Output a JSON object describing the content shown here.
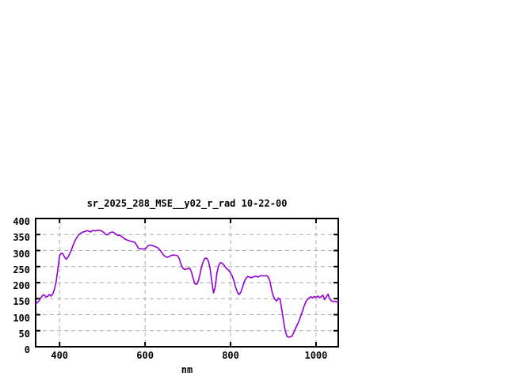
{
  "window": {
    "background": "#ffffff"
  },
  "chart_data": {
    "type": "line",
    "title": "sr_2025_288_MSE__y02_r_rad 10-22-00",
    "xlabel": "nm",
    "ylabel": "",
    "xlim": [
      344,
      1052
    ],
    "ylim": [
      0,
      400
    ],
    "x_ticks": [
      400,
      600,
      800,
      1000
    ],
    "y_ticks": [
      0,
      50,
      100,
      150,
      200,
      250,
      300,
      350,
      400
    ],
    "grid": true,
    "legend_position": "none",
    "colors": {
      "line": "#9400d3",
      "grid": "#ababab",
      "axis": "#000000",
      "text": "#000000",
      "background": "#ffffff"
    },
    "points": [
      [
        344,
        133
      ],
      [
        348,
        138
      ],
      [
        352,
        143
      ],
      [
        356,
        152
      ],
      [
        360,
        160
      ],
      [
        364,
        162
      ],
      [
        368,
        155
      ],
      [
        372,
        157
      ],
      [
        376,
        163
      ],
      [
        380,
        158
      ],
      [
        384,
        164
      ],
      [
        388,
        180
      ],
      [
        392,
        203
      ],
      [
        396,
        243
      ],
      [
        400,
        284
      ],
      [
        404,
        292
      ],
      [
        408,
        290
      ],
      [
        412,
        278
      ],
      [
        416,
        273
      ],
      [
        420,
        280
      ],
      [
        424,
        291
      ],
      [
        428,
        303
      ],
      [
        432,
        318
      ],
      [
        436,
        330
      ],
      [
        440,
        340
      ],
      [
        444,
        348
      ],
      [
        448,
        353
      ],
      [
        452,
        356
      ],
      [
        456,
        358
      ],
      [
        460,
        360
      ],
      [
        464,
        362
      ],
      [
        468,
        361
      ],
      [
        472,
        358
      ],
      [
        476,
        361
      ],
      [
        480,
        363
      ],
      [
        484,
        361
      ],
      [
        488,
        363
      ],
      [
        492,
        364
      ],
      [
        496,
        362
      ],
      [
        500,
        360
      ],
      [
        504,
        356
      ],
      [
        508,
        350
      ],
      [
        512,
        349
      ],
      [
        516,
        354
      ],
      [
        520,
        357
      ],
      [
        524,
        358
      ],
      [
        528,
        355
      ],
      [
        532,
        351
      ],
      [
        536,
        347
      ],
      [
        540,
        349
      ],
      [
        544,
        345
      ],
      [
        548,
        341
      ],
      [
        552,
        337
      ],
      [
        556,
        334
      ],
      [
        560,
        332
      ],
      [
        564,
        330
      ],
      [
        568,
        329
      ],
      [
        572,
        327
      ],
      [
        576,
        326
      ],
      [
        580,
        318
      ],
      [
        584,
        308
      ],
      [
        588,
        305
      ],
      [
        592,
        306
      ],
      [
        596,
        305
      ],
      [
        600,
        305
      ],
      [
        604,
        310
      ],
      [
        608,
        316
      ],
      [
        612,
        317
      ],
      [
        616,
        316
      ],
      [
        620,
        314
      ],
      [
        624,
        312
      ],
      [
        628,
        310
      ],
      [
        632,
        306
      ],
      [
        636,
        300
      ],
      [
        640,
        292
      ],
      [
        644,
        285
      ],
      [
        648,
        281
      ],
      [
        652,
        279
      ],
      [
        656,
        281
      ],
      [
        660,
        284
      ],
      [
        664,
        286
      ],
      [
        668,
        286
      ],
      [
        672,
        285
      ],
      [
        676,
        284
      ],
      [
        680,
        275
      ],
      [
        684,
        258
      ],
      [
        688,
        246
      ],
      [
        692,
        241
      ],
      [
        696,
        242
      ],
      [
        700,
        243
      ],
      [
        704,
        246
      ],
      [
        708,
        235
      ],
      [
        712,
        215
      ],
      [
        716,
        198
      ],
      [
        720,
        194
      ],
      [
        724,
        202
      ],
      [
        728,
        223
      ],
      [
        732,
        248
      ],
      [
        736,
        266
      ],
      [
        740,
        276
      ],
      [
        744,
        276
      ],
      [
        748,
        268
      ],
      [
        752,
        246
      ],
      [
        756,
        205
      ],
      [
        760,
        168
      ],
      [
        764,
        185
      ],
      [
        768,
        230
      ],
      [
        772,
        252
      ],
      [
        776,
        262
      ],
      [
        780,
        261
      ],
      [
        784,
        256
      ],
      [
        788,
        248
      ],
      [
        792,
        243
      ],
      [
        796,
        238
      ],
      [
        800,
        230
      ],
      [
        804,
        220
      ],
      [
        808,
        205
      ],
      [
        812,
        185
      ],
      [
        816,
        170
      ],
      [
        820,
        163
      ],
      [
        824,
        170
      ],
      [
        828,
        185
      ],
      [
        832,
        203
      ],
      [
        836,
        213
      ],
      [
        840,
        219
      ],
      [
        844,
        218
      ],
      [
        848,
        215
      ],
      [
        852,
        217
      ],
      [
        856,
        219
      ],
      [
        860,
        220
      ],
      [
        864,
        217
      ],
      [
        868,
        220
      ],
      [
        872,
        222
      ],
      [
        876,
        221
      ],
      [
        880,
        221
      ],
      [
        884,
        222
      ],
      [
        888,
        218
      ],
      [
        892,
        205
      ],
      [
        896,
        178
      ],
      [
        900,
        158
      ],
      [
        904,
        148
      ],
      [
        908,
        143
      ],
      [
        912,
        152
      ],
      [
        916,
        147
      ],
      [
        920,
        115
      ],
      [
        924,
        80
      ],
      [
        928,
        50
      ],
      [
        932,
        32
      ],
      [
        936,
        30
      ],
      [
        940,
        31
      ],
      [
        944,
        33
      ],
      [
        948,
        45
      ],
      [
        952,
        57
      ],
      [
        956,
        68
      ],
      [
        960,
        80
      ],
      [
        964,
        95
      ],
      [
        968,
        110
      ],
      [
        972,
        126
      ],
      [
        976,
        140
      ],
      [
        980,
        148
      ],
      [
        984,
        152
      ],
      [
        988,
        156
      ],
      [
        992,
        152
      ],
      [
        996,
        157
      ],
      [
        1000,
        154
      ],
      [
        1004,
        158
      ],
      [
        1008,
        153
      ],
      [
        1012,
        156
      ],
      [
        1016,
        161
      ],
      [
        1020,
        147
      ],
      [
        1024,
        155
      ],
      [
        1028,
        164
      ],
      [
        1032,
        150
      ],
      [
        1036,
        143
      ],
      [
        1040,
        141
      ],
      [
        1044,
        142
      ],
      [
        1048,
        140
      ],
      [
        1052,
        141
      ]
    ]
  }
}
